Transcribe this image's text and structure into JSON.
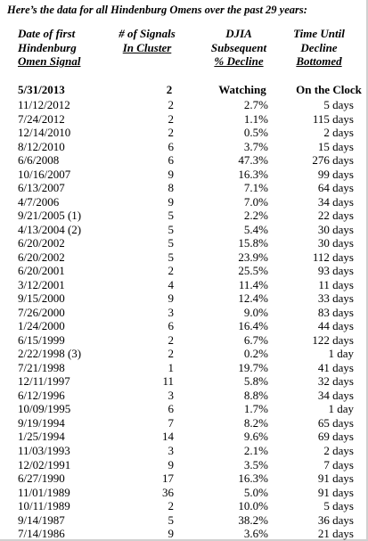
{
  "title": "Here’s the data for all Hindenburg Omens over the past 29 years:",
  "headers": [
    [
      "Date of first",
      "Hindenburg",
      "Omen Signal"
    ],
    [
      "# of Signals",
      "In Cluster"
    ],
    [
      "DJIA",
      "Subsequent",
      "% Decline"
    ],
    [
      "Time Until",
      "Decline",
      "Bottomed"
    ]
  ],
  "current_row": [
    "5/31/2013",
    "2",
    "Watching",
    "On the Clock"
  ],
  "rows": [
    [
      "11/12/2012",
      "2",
      "2.7%",
      "5 days"
    ],
    [
      "7/24/2012",
      "2",
      "1.1%",
      "115 days"
    ],
    [
      "12/14/2010",
      "2",
      "0.5%",
      "2 days"
    ],
    [
      "8/12/2010",
      "6",
      "3.7%",
      "15 days"
    ],
    [
      "6/6/2008",
      "6",
      "47.3%",
      "276 days"
    ],
    [
      "10/16/2007",
      "9",
      "16.3%",
      "99 days"
    ],
    [
      "6/13/2007",
      "8",
      "7.1%",
      "64 days"
    ],
    [
      "4/7/2006",
      "9",
      "7.0%",
      "34 days"
    ],
    [
      "9/21/2005 (1)",
      "5",
      "2.2%",
      "22 days"
    ],
    [
      "4/13/2004 (2)",
      "5",
      "5.4%",
      "30 days"
    ],
    [
      "6/20/2002",
      "5",
      "15.8%",
      "30 days"
    ],
    [
      "6/20/2002",
      "5",
      "23.9%",
      "112 days"
    ],
    [
      "6/20/2001",
      "2",
      "25.5%",
      "93 days"
    ],
    [
      "3/12/2001",
      "4",
      "11.4%",
      "11 days"
    ],
    [
      "9/15/2000",
      "9",
      "12.4%",
      "33 days"
    ],
    [
      "7/26/2000",
      "3",
      "9.0%",
      "83 days"
    ],
    [
      "1/24/2000",
      "6",
      "16.4%",
      "44 days"
    ],
    [
      "6/15/1999",
      "2",
      "6.7%",
      "122 days"
    ],
    [
      "2/22/1998 (3)",
      "2",
      "0.2%",
      "1 day"
    ],
    [
      "7/21/1998",
      "1",
      "19.7%",
      "41 days"
    ],
    [
      "12/11/1997",
      "11",
      "5.8%",
      "32 days"
    ],
    [
      "6/12/1996",
      "3",
      "8.8%",
      "34 days"
    ],
    [
      "10/09/1995",
      "6",
      "1.7%",
      "1 day"
    ],
    [
      "9/19/1994",
      "7",
      "8.2%",
      "65 days"
    ],
    [
      "1/25/1994",
      "14",
      "9.6%",
      "69 days"
    ],
    [
      "11/03/1993",
      "3",
      "2.1%",
      "2 days"
    ],
    [
      "12/02/1991",
      "9",
      "3.5%",
      "7 days"
    ],
    [
      "6/27/1990",
      "17",
      "16.3%",
      "91 days"
    ],
    [
      "11/01/1989",
      "36",
      "5.0%",
      "91 days"
    ],
    [
      "10/11/1989",
      "2",
      "10.0%",
      "5 days"
    ],
    [
      "9/14/1987",
      "5",
      "38.2%",
      "36 days"
    ],
    [
      "7/14/1986",
      "9",
      "3.6%",
      "21 days"
    ]
  ]
}
